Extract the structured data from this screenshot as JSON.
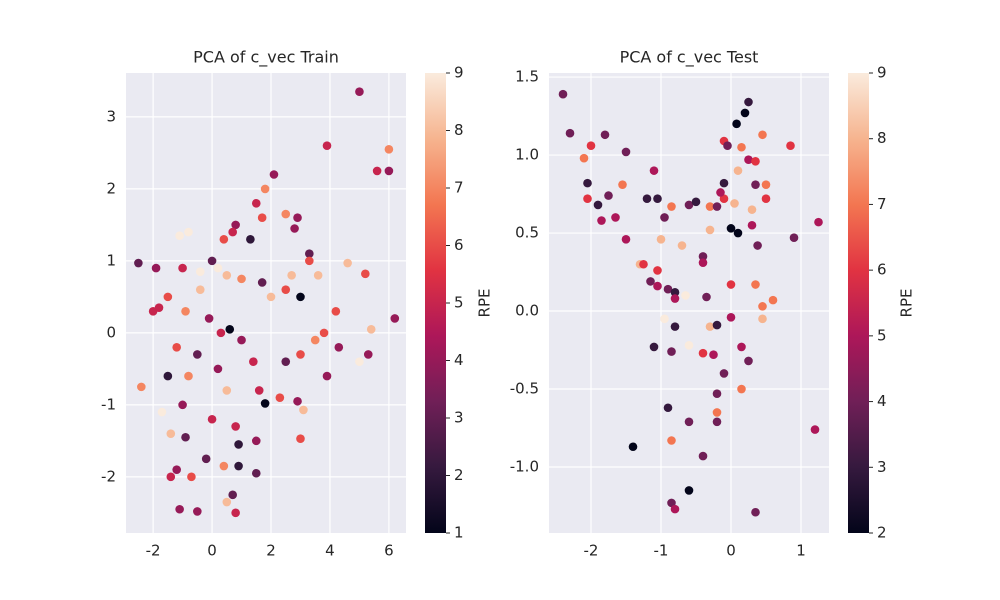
{
  "chart_data": [
    {
      "type": "scatter",
      "title": "PCA of c_vec Train",
      "colormap": [
        "#03051a",
        "#35193e",
        "#701f57",
        "#ad1759",
        "#e13342",
        "#f37651",
        "#f6b48f",
        "#faebdd"
      ],
      "xlim": [
        -2.92,
        6.58
      ],
      "ylim": [
        -2.78,
        3.61
      ],
      "xticks": [
        -2,
        0,
        2,
        4,
        6
      ],
      "yticks": [
        -2,
        -1,
        0,
        1,
        2,
        3
      ],
      "grid": true,
      "colorbar": {
        "label": "RPE",
        "lim": [
          1,
          9
        ],
        "ticks": [
          1,
          2,
          3,
          4,
          5,
          6,
          7,
          8,
          9
        ]
      },
      "x": [
        5.0,
        3.9,
        6.0,
        5.6,
        6.0,
        2.1,
        1.8,
        1.5,
        2.9,
        2.5,
        1.7,
        2.8,
        0.8,
        0.7,
        1.3,
        0.4,
        -0.8,
        -1.1,
        3.3,
        4.6,
        3.3,
        -2.5,
        5.2,
        3.6,
        2.7,
        3.0,
        2.5,
        -1.9,
        -1.0,
        0.0,
        0.5,
        1.0,
        -0.4,
        1.7,
        2.0,
        4.2,
        6.2,
        5.4,
        3.8,
        3.5,
        4.3,
        5.3,
        5.0,
        3.9,
        3.0,
        2.5,
        -2.0,
        -1.5,
        -0.9,
        -0.1,
        0.3,
        1.0,
        -1.2,
        -0.5,
        0.2,
        1.4,
        -1.5,
        -2.4,
        -0.8,
        0.5,
        1.6,
        2.3,
        3.1,
        1.8,
        2.9,
        -1.7,
        -1.0,
        0.0,
        0.8,
        -1.4,
        -0.9,
        0.9,
        1.5,
        3.0,
        -1.2,
        -0.2,
        0.4,
        0.9,
        1.5,
        -1.4,
        -0.7,
        0.7,
        0.5,
        -1.1,
        -0.5,
        0.8,
        0.6,
        -0.4,
        0.2,
        -1.8
      ],
      "y": [
        3.35,
        2.6,
        2.55,
        2.25,
        2.25,
        2.2,
        2.0,
        1.8,
        1.6,
        1.65,
        1.6,
        1.45,
        1.5,
        1.4,
        1.3,
        1.3,
        1.4,
        1.35,
        1.1,
        0.97,
        1.0,
        0.97,
        0.82,
        0.8,
        0.8,
        0.5,
        0.6,
        0.9,
        0.9,
        1.0,
        0.8,
        0.75,
        0.6,
        0.7,
        0.5,
        0.3,
        0.2,
        0.05,
        0.0,
        -0.1,
        -0.2,
        -0.3,
        -0.4,
        -0.6,
        -0.3,
        -0.4,
        0.3,
        0.5,
        0.3,
        0.2,
        0.0,
        -0.1,
        -0.2,
        -0.3,
        -0.5,
        -0.4,
        -0.6,
        -0.75,
        -0.6,
        -0.8,
        -0.8,
        -0.9,
        -1.07,
        -0.98,
        -0.95,
        -1.1,
        -1.0,
        -1.2,
        -1.3,
        -1.4,
        -1.45,
        -1.55,
        -1.5,
        -1.47,
        -1.9,
        -1.75,
        -1.85,
        -1.85,
        -1.95,
        -2.0,
        -2.0,
        -2.25,
        -2.35,
        -2.45,
        -2.48,
        -2.5,
        0.05,
        0.85,
        0.9,
        0.35
      ],
      "c": [
        4,
        5,
        7,
        5,
        4,
        4,
        7,
        5,
        4,
        7,
        6,
        4,
        4,
        5,
        2,
        6,
        9,
        9,
        3,
        8,
        6,
        3,
        6,
        8,
        8,
        1,
        6,
        4,
        5,
        3,
        8,
        7,
        8,
        3,
        8,
        6,
        4,
        8,
        6,
        7,
        4,
        4,
        9,
        4,
        6,
        3,
        5,
        6,
        7,
        4,
        5,
        4,
        6,
        3,
        4,
        5,
        2,
        7,
        7,
        8,
        5,
        6,
        8,
        1,
        4,
        9,
        4,
        5,
        5,
        8,
        3,
        2,
        4,
        6,
        4,
        3,
        7,
        2,
        3,
        5,
        6,
        3,
        8,
        4,
        4,
        5,
        1,
        9,
        9,
        5
      ]
    },
    {
      "type": "scatter",
      "title": "PCA of c_vec Test",
      "colormap": [
        "#03051a",
        "#35193e",
        "#701f57",
        "#ad1759",
        "#e13342",
        "#f37651",
        "#f6b48f",
        "#faebdd"
      ],
      "xlim": [
        -2.6,
        1.4
      ],
      "ylim": [
        -1.423,
        1.526
      ],
      "xticks": [
        -2,
        -1,
        0,
        1
      ],
      "yticks": [
        {
          "value": -1,
          "label": "-1.0"
        },
        -0.5,
        {
          "value": 0,
          "label": "0.0"
        },
        0.5,
        {
          "value": 1,
          "label": "1.0"
        },
        1.5
      ],
      "grid": true,
      "colorbar": {
        "label": "RPE",
        "lim": [
          2,
          9
        ],
        "ticks": [
          2,
          3,
          4,
          5,
          6,
          7,
          8,
          9
        ]
      },
      "x": [
        -2.4,
        -2.3,
        -1.8,
        -2.1,
        -2.0,
        -1.5,
        -2.05,
        -1.9,
        -1.75,
        -2.05,
        -1.55,
        -1.1,
        -1.85,
        -1.65,
        -1.5,
        -1.2,
        -1.05,
        -0.95,
        -0.85,
        -0.6,
        -0.5,
        -0.3,
        -0.1,
        0.05,
        0.1,
        0.0,
        0.3,
        0.25,
        0.35,
        0.45,
        0.2,
        0.25,
        0.08,
        -0.1,
        -0.05,
        0.15,
        0.85,
        0.1,
        0.35,
        0.5,
        0.5,
        0.3,
        0.38,
        -0.1,
        -0.15,
        -0.2,
        -1.0,
        -0.7,
        -0.3,
        -0.4,
        -0.4,
        -1.3,
        -1.25,
        -1.05,
        -1.15,
        -1.05,
        -0.9,
        -0.8,
        -0.8,
        -0.65,
        -0.35,
        0.0,
        0.35,
        -0.95,
        -0.8,
        -0.3,
        -0.2,
        0.0,
        0.45,
        0.45,
        0.6,
        -1.1,
        -0.85,
        -0.6,
        -0.4,
        -0.25,
        0.15,
        0.25,
        -0.1,
        0.15,
        -0.2,
        -0.9,
        -0.2,
        -0.2,
        -0.6,
        -1.4,
        -0.85,
        -0.4,
        1.2,
        -0.6,
        -0.85,
        -0.8,
        0.35,
        1.25,
        0.9
      ],
      "y": [
        1.39,
        1.14,
        1.13,
        0.98,
        1.06,
        1.02,
        0.82,
        0.68,
        0.74,
        0.72,
        0.81,
        0.9,
        0.58,
        0.6,
        0.46,
        0.72,
        0.72,
        0.6,
        0.67,
        0.68,
        0.7,
        0.67,
        0.72,
        0.69,
        0.5,
        0.53,
        0.55,
        0.97,
        0.96,
        1.13,
        1.27,
        1.34,
        1.2,
        1.09,
        1.06,
        1.05,
        1.06,
        0.9,
        0.81,
        0.81,
        0.72,
        0.65,
        0.42,
        0.82,
        0.76,
        0.67,
        0.46,
        0.42,
        0.52,
        0.35,
        0.31,
        0.3,
        0.3,
        0.26,
        0.19,
        0.16,
        0.14,
        0.12,
        0.08,
        0.1,
        0.09,
        0.17,
        0.17,
        -0.05,
        -0.1,
        -0.1,
        -0.09,
        -0.04,
        -0.05,
        0.03,
        0.07,
        -0.23,
        -0.26,
        -0.22,
        -0.27,
        -0.28,
        -0.23,
        -0.32,
        -0.4,
        -0.5,
        -0.53,
        -0.62,
        -0.65,
        -0.71,
        -0.71,
        -0.87,
        -0.83,
        -0.93,
        -0.76,
        -1.15,
        -1.23,
        -1.27,
        -1.29,
        0.57,
        0.47
      ],
      "c": [
        4,
        4,
        4,
        7,
        6,
        4,
        3,
        3,
        4,
        6,
        7,
        5,
        5,
        5,
        5,
        3,
        3,
        4,
        7,
        4,
        3,
        7,
        6,
        8,
        2,
        2,
        5,
        5,
        6,
        7,
        2,
        3,
        2,
        6,
        4,
        7,
        6,
        8,
        4,
        7,
        6,
        8,
        4,
        3,
        5,
        4,
        8,
        8,
        8,
        4,
        5,
        8,
        6,
        6,
        4,
        5,
        4,
        3,
        5,
        9,
        4,
        6,
        7,
        9,
        3,
        8,
        3,
        5,
        8,
        7,
        7,
        3,
        4,
        9,
        6,
        5,
        5,
        4,
        4,
        7,
        4,
        3,
        7,
        4,
        4,
        2,
        7,
        4,
        5,
        2,
        4,
        5,
        4,
        5,
        4
      ]
    }
  ]
}
